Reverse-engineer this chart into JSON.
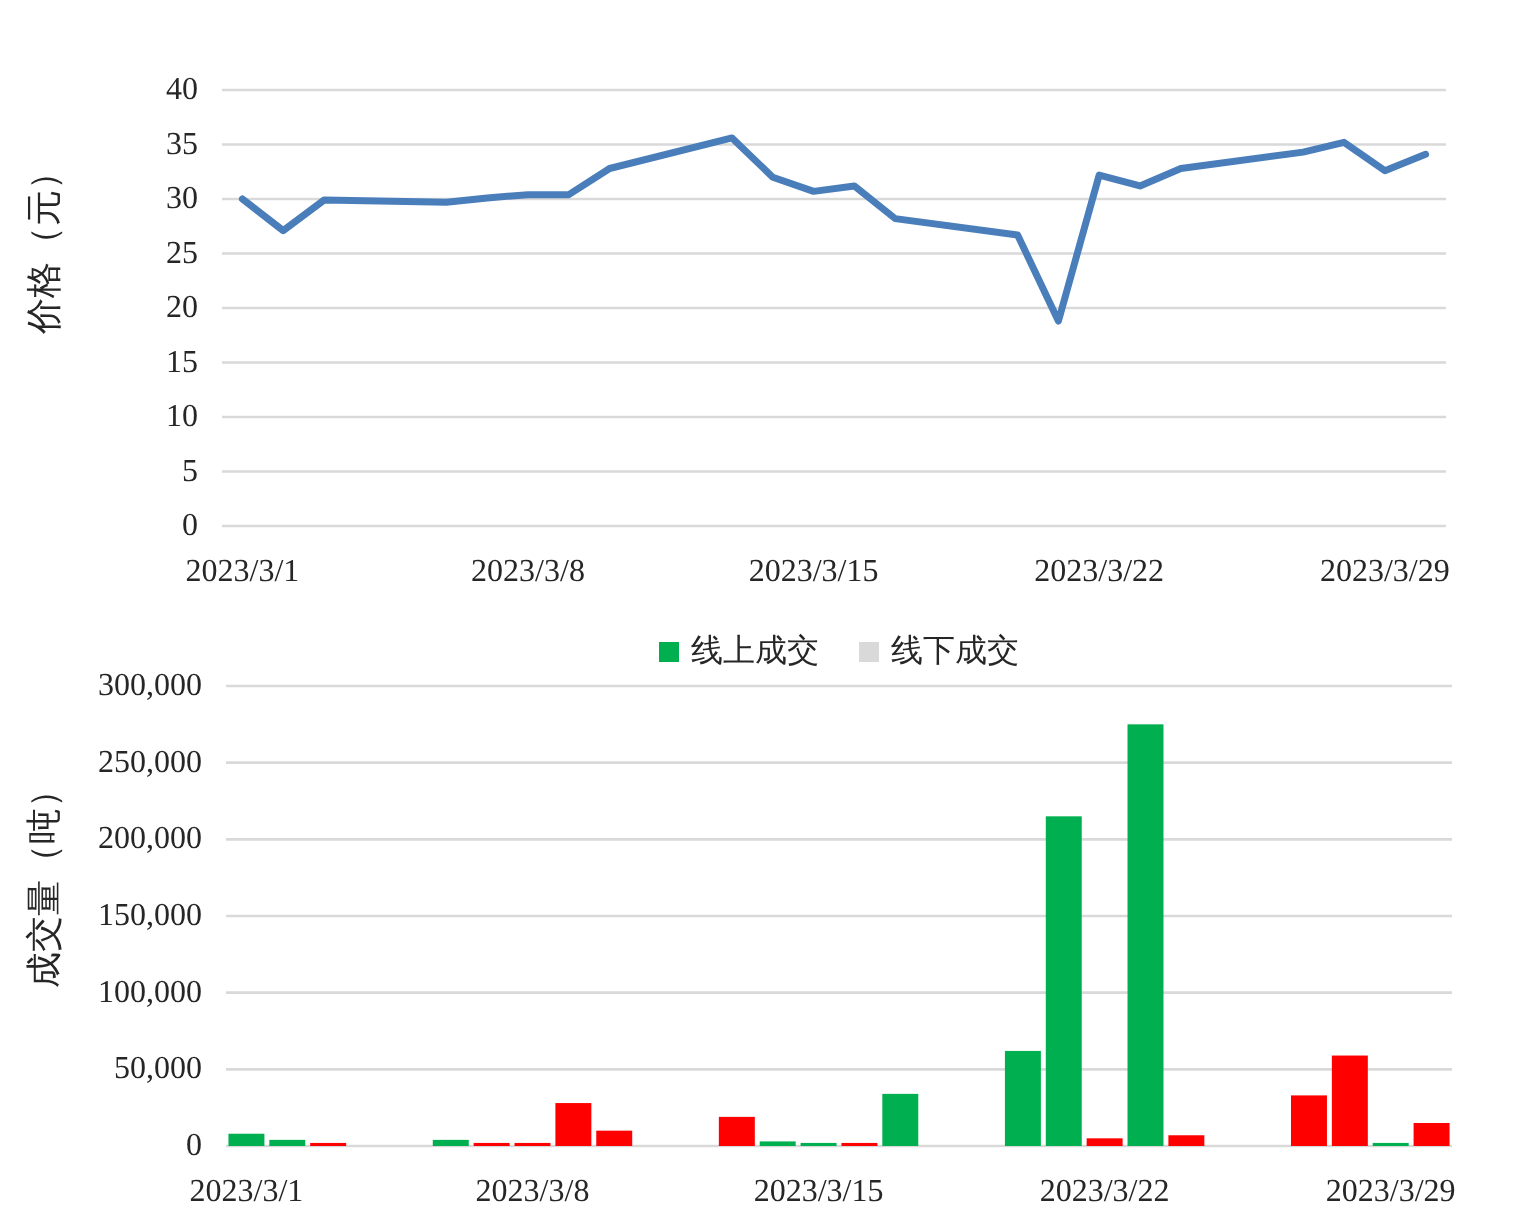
{
  "chart_data": [
    {
      "type": "line",
      "ylabel": "价格（元）",
      "color": "#4a7ebb",
      "x": [
        "2023-03-01",
        "2023-03-02",
        "2023-03-03",
        "2023-03-06",
        "2023-03-07",
        "2023-03-08",
        "2023-03-09",
        "2023-03-10",
        "2023-03-13",
        "2023-03-14",
        "2023-03-15",
        "2023-03-16",
        "2023-03-17",
        "2023-03-20",
        "2023-03-21",
        "2023-03-22",
        "2023-03-23",
        "2023-03-24",
        "2023-03-27",
        "2023-03-28",
        "2023-03-29",
        "2023-03-30"
      ],
      "values": [
        30.0,
        27.1,
        29.9,
        29.7,
        30.1,
        30.4,
        30.4,
        32.8,
        35.6,
        32.0,
        30.7,
        31.2,
        28.2,
        26.7,
        18.8,
        32.2,
        31.2,
        32.8,
        34.3,
        35.2,
        32.6,
        34.1
      ],
      "xlim": [
        "2023-02-28T12:00",
        "2023-03-30T12:00"
      ],
      "xticks": [
        {
          "value": "2023-03-01",
          "label": "2023/3/1"
        },
        {
          "value": "2023-03-08",
          "label": "2023/3/8"
        },
        {
          "value": "2023-03-15",
          "label": "2023/3/15"
        },
        {
          "value": "2023-03-22",
          "label": "2023/3/22"
        },
        {
          "value": "2023-03-29",
          "label": "2023/3/29"
        }
      ],
      "ylim": [
        0,
        40
      ],
      "yticks": [
        0,
        5,
        10,
        15,
        20,
        25,
        30,
        35,
        40
      ],
      "grid": "y"
    },
    {
      "type": "bar",
      "ylabel": "成交量（吨）",
      "legend": "top",
      "x": [
        "2023-03-01",
        "2023-03-02",
        "2023-03-03",
        "2023-03-06",
        "2023-03-07",
        "2023-03-08",
        "2023-03-09",
        "2023-03-10",
        "2023-03-13",
        "2023-03-14",
        "2023-03-15",
        "2023-03-16",
        "2023-03-17",
        "2023-03-20",
        "2023-03-21",
        "2023-03-22",
        "2023-03-23",
        "2023-03-24",
        "2023-03-27",
        "2023-03-28",
        "2023-03-29",
        "2023-03-30"
      ],
      "series": [
        {
          "name": "线上成交",
          "color": "#00b050",
          "colors": [
            "#00b050",
            "#00b050",
            "#ff0000",
            "#00b050",
            "#ff0000",
            "#ff0000",
            "#ff0000",
            "#ff0000",
            "#ff0000",
            "#00b050",
            "#00b050",
            "#ff0000",
            "#00b050",
            "#00b050",
            "#00b050",
            "#ff0000",
            "#00b050",
            "#ff0000",
            "#ff0000",
            "#ff0000",
            "#00b050",
            "#ff0000"
          ],
          "values": [
            8000,
            4000,
            2000,
            4000,
            2000,
            2000,
            28000,
            10000,
            19000,
            3000,
            2000,
            2000,
            34000,
            62000,
            215000,
            5000,
            275000,
            7000,
            33000,
            59000,
            2000,
            15000
          ]
        },
        {
          "name": "线下成交",
          "color": "#d9d9d9",
          "values": [
            null,
            null,
            null,
            null,
            null,
            null,
            null,
            null,
            null,
            null,
            null,
            null,
            null,
            null,
            null,
            null,
            null,
            null,
            null,
            null,
            null,
            null
          ]
        }
      ],
      "xlim": [
        "2023-02-28T12:00",
        "2023-03-30T12:00"
      ],
      "xticks": [
        {
          "value": "2023-03-01",
          "label": "2023/3/1"
        },
        {
          "value": "2023-03-08",
          "label": "2023/3/8"
        },
        {
          "value": "2023-03-15",
          "label": "2023/3/15"
        },
        {
          "value": "2023-03-22",
          "label": "2023/3/22"
        },
        {
          "value": "2023-03-29",
          "label": "2023/3/29"
        }
      ],
      "ylim": [
        0,
        300000
      ],
      "yticks": [
        {
          "value": 0,
          "label": "0"
        },
        {
          "value": 50000,
          "label": "50,000"
        },
        {
          "value": 100000,
          "label": "100,000"
        },
        {
          "value": 150000,
          "label": "150,000"
        },
        {
          "value": 200000,
          "label": "200,000"
        },
        {
          "value": 250000,
          "label": "250,000"
        },
        {
          "value": 300000,
          "label": "300,000"
        }
      ],
      "grid": "y"
    }
  ]
}
